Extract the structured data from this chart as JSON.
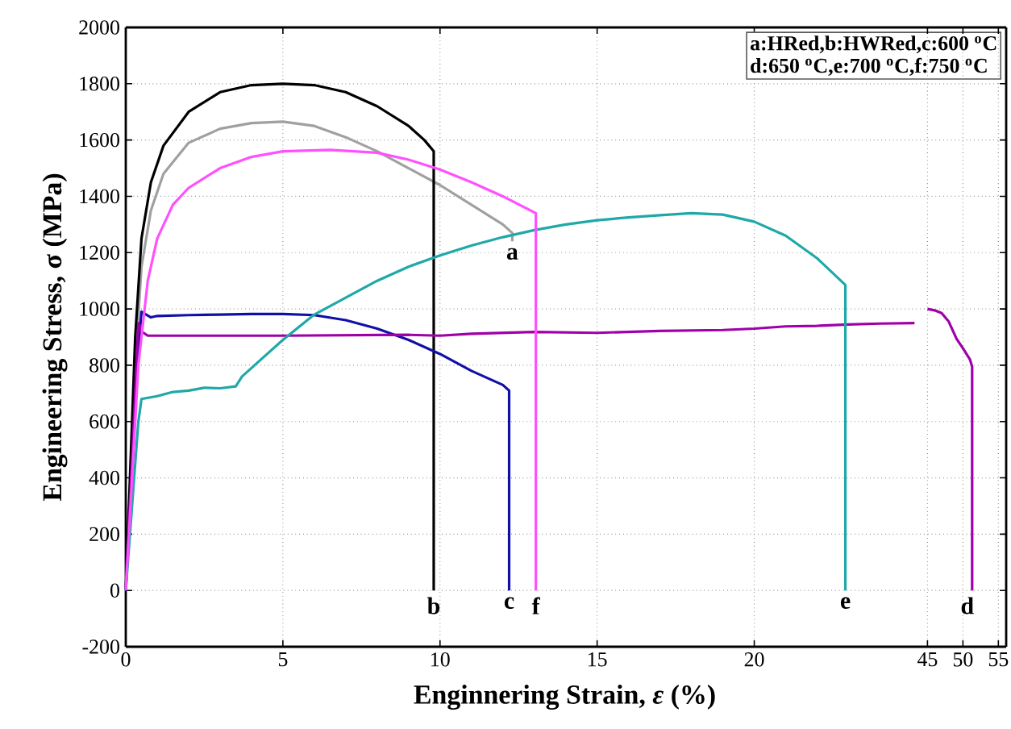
{
  "chart_data": [
    {
      "type": "line",
      "xlabel": "Enginnering Strain, *ε* (%)",
      "ylabel": "Engineering Stress, σ (MPa)",
      "annotations": [
        "a:HRed,b:HWRed,c:600 $^{o}$C",
        "d:650 $^{o}$C,e:700 $^{o}$C,f:750 $^{o}$C"
      ],
      "xlim": [
        0,
        25.4
      ],
      "ylim": [
        -200,
        2000
      ],
      "xticks": [
        0,
        5,
        10,
        15,
        20
      ],
      "yticks": [
        -200,
        0,
        200,
        400,
        600,
        800,
        1000,
        1200,
        1400,
        1600,
        1800,
        2000
      ],
      "grid": true,
      "series": [
        {
          "name": "a",
          "color": "#a0a0a0",
          "x": [
            0,
            0.3,
            0.5,
            0.8,
            1.2,
            2,
            3,
            4,
            5,
            6,
            7,
            8,
            9,
            10,
            11,
            12,
            12.3,
            12.3
          ],
          "values": [
            0,
            800,
            1150,
            1350,
            1480,
            1590,
            1640,
            1660,
            1665,
            1650,
            1610,
            1560,
            1500,
            1440,
            1370,
            1300,
            1270,
            1240
          ]
        },
        {
          "name": "b",
          "color": "#000000",
          "x": [
            0,
            0.3,
            0.5,
            0.8,
            1.2,
            2,
            3,
            4,
            5,
            6,
            7,
            8,
            9,
            9.5,
            9.8,
            9.8
          ],
          "values": [
            0,
            900,
            1250,
            1450,
            1580,
            1700,
            1770,
            1795,
            1800,
            1795,
            1770,
            1720,
            1650,
            1600,
            1560,
            0
          ]
        },
        {
          "name": "c",
          "color": "#1010a8",
          "x": [
            0,
            0.4,
            0.5,
            0.8,
            1,
            2,
            3,
            4,
            5,
            6,
            7,
            8,
            9,
            10,
            11,
            12,
            12.2,
            12.2
          ],
          "values": [
            0,
            850,
            990,
            970,
            975,
            978,
            980,
            982,
            982,
            978,
            960,
            930,
            890,
            840,
            780,
            730,
            710,
            0
          ]
        },
        {
          "color": "#a000a8",
          "x": [
            0,
            0.3,
            0.4,
            0.5,
            0.7,
            1,
            5,
            9,
            10,
            11,
            13,
            15,
            17,
            19,
            20,
            21,
            22,
            23,
            24,
            25.1
          ],
          "values": [
            0,
            700,
            950,
            920,
            905,
            905,
            905,
            908,
            905,
            912,
            918,
            915,
            922,
            925,
            930,
            938,
            940,
            945,
            948,
            950
          ]
        },
        {
          "name": "e",
          "color": "#20a8a8",
          "x": [
            0,
            0.4,
            0.5,
            1,
            1.5,
            2,
            2.5,
            3,
            3.5,
            3.7,
            4,
            4.5,
            5,
            6,
            7,
            8,
            9,
            10,
            11,
            12,
            13,
            14,
            15,
            16,
            17,
            18,
            19,
            20,
            21,
            22,
            22.9,
            22.9
          ],
          "values": [
            0,
            600,
            680,
            690,
            705,
            710,
            720,
            718,
            725,
            760,
            790,
            840,
            890,
            980,
            1040,
            1100,
            1150,
            1190,
            1225,
            1255,
            1280,
            1300,
            1315,
            1325,
            1333,
            1340,
            1335,
            1310,
            1260,
            1180,
            1085,
            0
          ]
        },
        {
          "name": "f",
          "color": "#ff50ff",
          "x": [
            0,
            0.4,
            0.7,
            1,
            1.5,
            2,
            3,
            4,
            5,
            6.5,
            8,
            9,
            10,
            11,
            12,
            13.05,
            13.05
          ],
          "values": [
            0,
            800,
            1100,
            1250,
            1370,
            1430,
            1500,
            1540,
            1560,
            1565,
            1555,
            1530,
            1495,
            1450,
            1400,
            1340,
            0
          ]
        }
      ]
    },
    {
      "type": "line",
      "tick_labels": "x",
      "xlim": [
        44.5,
        56.1
      ],
      "ylim": [
        -200,
        2000
      ],
      "xticks": [
        45,
        50,
        55
      ],
      "yticks": [
        -200,
        0,
        200,
        400,
        600,
        800,
        1000,
        1200,
        1400,
        1600,
        1800,
        2000
      ],
      "grid": true,
      "series": [
        {
          "name": "d",
          "color": "#a000a8",
          "x": [
            45,
            46,
            47,
            48,
            49.1,
            50,
            51,
            51.3,
            51.3
          ],
          "values": [
            1000,
            995,
            985,
            955,
            894,
            860,
            820,
            795,
            0
          ]
        }
      ]
    }
  ]
}
